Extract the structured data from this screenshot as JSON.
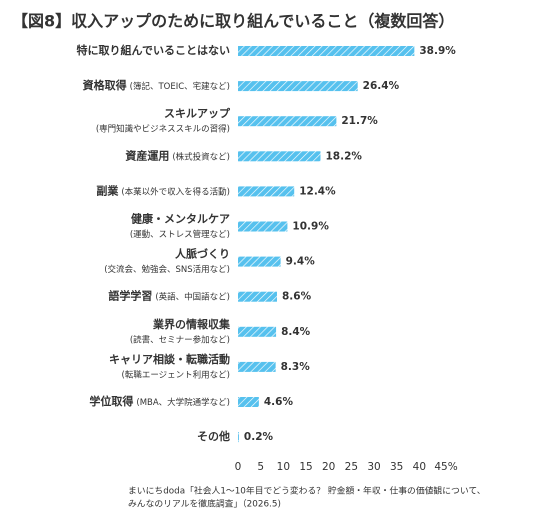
{
  "chart_data": {
    "type": "bar",
    "orientation": "horizontal",
    "title": "【図8】収入アップのために取り組んでいること（複数回答）",
    "categories": [
      "特に取り組んでいることはない",
      "資格取得",
      "スキルアップ",
      "資産運用",
      "副業",
      "健康・メンタルケア",
      "人脈づくり",
      "語学学習",
      "業界の情報収集",
      "キャリア相談・転職活動",
      "学位取得",
      "その他"
    ],
    "category_notes": [
      null,
      "(簿記、TOEIC、宅建など)",
      "(専門知識やビジネススキルの習得)",
      "(株式投資など)",
      "(本業以外で収入を得る活動)",
      "(運動、ストレス管理など)",
      "(交流会、勉強会、SNS活用など)",
      "(英語、中国語など)",
      "(読書、セミナー参加など)",
      "(転職エージェント利用など)",
      "(MBA、大学院通学など)",
      null
    ],
    "values": [
      38.9,
      26.4,
      21.7,
      18.2,
      12.4,
      10.9,
      9.4,
      8.6,
      8.4,
      8.3,
      4.6,
      0.2
    ],
    "value_labels": [
      "38.9%",
      "26.4%",
      "21.7%",
      "18.2%",
      "12.4%",
      "10.9%",
      "9.4%",
      "8.6%",
      "8.4%",
      "8.3%",
      "4.6%",
      "0.2%"
    ],
    "color": "#56c1ee",
    "xlim": [
      0,
      45
    ],
    "xticks": [
      0,
      5,
      10,
      15,
      20,
      25,
      30,
      35,
      40,
      {
        "value": 45,
        "label": "45%"
      }
    ],
    "source": [
      "まいにちdoda「社会人1〜10年目でどう変わる？ 貯金額・年収・仕事の価値観について、",
      "みんなのリアルを徹底調査」（2026.5)"
    ]
  }
}
